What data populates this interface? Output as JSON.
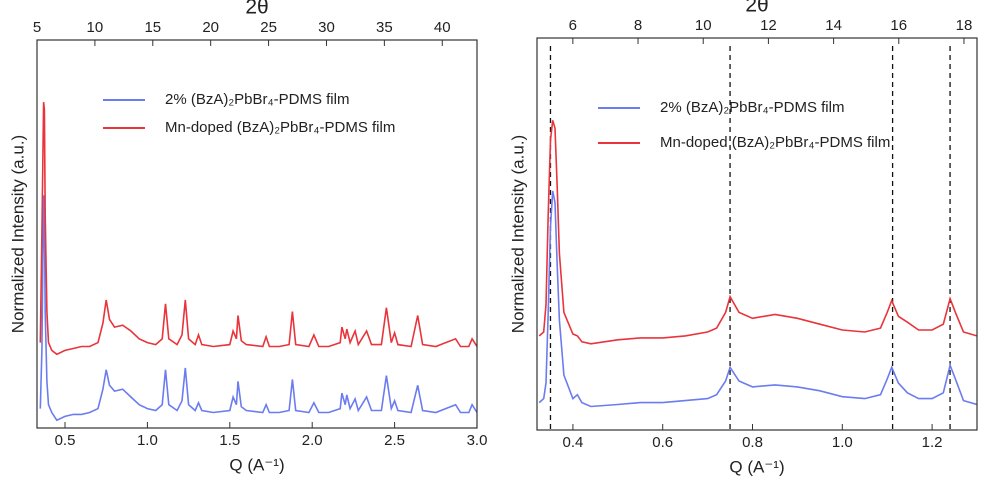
{
  "chart_data": [
    {
      "type": "line",
      "x_label": "Q (A⁻¹)",
      "x2_label": "2θ",
      "y_label": "Normalized Intensity (a.u.)",
      "xlim": [
        0.33,
        3.0
      ],
      "xticks": [
        0.5,
        {
          "value": 1,
          "label": "1.0"
        },
        1.5,
        {
          "value": 2,
          "label": "2.0"
        },
        2.5,
        {
          "value": 3,
          "label": "3.0"
        }
      ],
      "x2lim": [
        5,
        43
      ],
      "x2ticks": [
        5,
        10,
        15,
        20,
        25,
        30,
        35,
        40
      ],
      "ylim": [
        0,
        1
      ],
      "x": [
        0.35,
        0.36,
        0.37,
        0.375,
        0.38,
        0.39,
        0.4,
        0.42,
        0.45,
        0.5,
        0.55,
        0.6,
        0.65,
        0.7,
        0.73,
        0.75,
        0.77,
        0.8,
        0.85,
        0.9,
        0.95,
        1.0,
        1.05,
        1.09,
        1.11,
        1.13,
        1.18,
        1.21,
        1.23,
        1.25,
        1.29,
        1.31,
        1.33,
        1.4,
        1.5,
        1.52,
        1.54,
        1.55,
        1.57,
        1.6,
        1.7,
        1.72,
        1.74,
        1.8,
        1.86,
        1.88,
        1.9,
        1.98,
        2.01,
        2.04,
        2.1,
        2.17,
        2.18,
        2.2,
        2.21,
        2.23,
        2.26,
        2.28,
        2.33,
        2.36,
        2.42,
        2.45,
        2.48,
        2.5,
        2.52,
        2.6,
        2.64,
        2.67,
        2.75,
        2.87,
        2.9,
        2.95,
        2.97,
        3.0
      ],
      "series": [
        {
          "name": "2% (BzA)₂PbBr₄-PDMS film",
          "color": "#6b7cf0",
          "values": [
            0.05,
            0.2,
            0.6,
            0.55,
            0.3,
            0.12,
            0.06,
            0.04,
            0.02,
            0.03,
            0.035,
            0.035,
            0.04,
            0.05,
            0.1,
            0.15,
            0.11,
            0.095,
            0.1,
            0.08,
            0.06,
            0.05,
            0.045,
            0.06,
            0.15,
            0.06,
            0.045,
            0.07,
            0.155,
            0.06,
            0.045,
            0.065,
            0.045,
            0.04,
            0.045,
            0.08,
            0.06,
            0.12,
            0.055,
            0.045,
            0.04,
            0.06,
            0.04,
            0.04,
            0.045,
            0.125,
            0.045,
            0.04,
            0.065,
            0.04,
            0.04,
            0.05,
            0.09,
            0.06,
            0.085,
            0.05,
            0.075,
            0.045,
            0.08,
            0.045,
            0.045,
            0.135,
            0.05,
            0.07,
            0.045,
            0.04,
            0.11,
            0.045,
            0.04,
            0.06,
            0.04,
            0.04,
            0.06,
            0.04
          ]
        },
        {
          "name": "Mn-doped (BzA)₂PbBr₄-PDMS film",
          "color": "#e8343a",
          "values": [
            0.22,
            0.5,
            0.84,
            0.82,
            0.55,
            0.3,
            0.22,
            0.2,
            0.19,
            0.2,
            0.205,
            0.21,
            0.21,
            0.22,
            0.27,
            0.33,
            0.28,
            0.26,
            0.265,
            0.25,
            0.23,
            0.22,
            0.215,
            0.23,
            0.32,
            0.23,
            0.215,
            0.24,
            0.33,
            0.23,
            0.215,
            0.24,
            0.215,
            0.21,
            0.215,
            0.25,
            0.23,
            0.29,
            0.225,
            0.215,
            0.21,
            0.235,
            0.21,
            0.21,
            0.215,
            0.3,
            0.215,
            0.21,
            0.24,
            0.21,
            0.21,
            0.22,
            0.26,
            0.23,
            0.255,
            0.22,
            0.25,
            0.215,
            0.25,
            0.215,
            0.215,
            0.31,
            0.22,
            0.245,
            0.215,
            0.21,
            0.29,
            0.215,
            0.21,
            0.23,
            0.21,
            0.21,
            0.23,
            0.21
          ]
        }
      ]
    },
    {
      "type": "line",
      "x_label": "Q (A⁻¹)",
      "x2_label": "2θ",
      "y_label": "Normalized Intensity (a.u.)",
      "xlim": [
        0.32,
        1.3
      ],
      "xticks": [
        0.4,
        0.6,
        0.8,
        {
          "value": 1,
          "label": "1.0"
        },
        1.2
      ],
      "x2lim": [
        4.9,
        18.4
      ],
      "x2ticks": [
        6,
        8,
        10,
        12,
        14,
        16,
        18
      ],
      "ylim": [
        0,
        1
      ],
      "vlines": [
        0.35,
        0.75,
        1.112,
        1.24
      ],
      "x": [
        0.325,
        0.335,
        0.34,
        0.345,
        0.35,
        0.355,
        0.36,
        0.365,
        0.37,
        0.38,
        0.4,
        0.41,
        0.42,
        0.44,
        0.5,
        0.55,
        0.6,
        0.65,
        0.7,
        0.72,
        0.74,
        0.75,
        0.77,
        0.8,
        0.85,
        0.9,
        0.95,
        1.0,
        1.05,
        1.085,
        1.1,
        1.11,
        1.125,
        1.145,
        1.17,
        1.2,
        1.225,
        1.24,
        1.252,
        1.27,
        1.3
      ],
      "series": [
        {
          "name": "2% (BzA)₂PbBr₄-PDMS film",
          "color": "#6b7cf0",
          "values": [
            0.07,
            0.08,
            0.12,
            0.3,
            0.52,
            0.61,
            0.58,
            0.42,
            0.28,
            0.14,
            0.08,
            0.09,
            0.07,
            0.06,
            0.065,
            0.07,
            0.07,
            0.075,
            0.08,
            0.09,
            0.125,
            0.16,
            0.125,
            0.11,
            0.115,
            0.11,
            0.1,
            0.085,
            0.08,
            0.09,
            0.13,
            0.16,
            0.12,
            0.095,
            0.08,
            0.08,
            0.095,
            0.165,
            0.13,
            0.075,
            0.065
          ]
        },
        {
          "name": "Mn-doped (BzA)₂PbBr₄-PDMS film",
          "color": "#e8343a",
          "values": [
            0.24,
            0.25,
            0.32,
            0.55,
            0.74,
            0.79,
            0.77,
            0.62,
            0.45,
            0.3,
            0.245,
            0.24,
            0.225,
            0.22,
            0.23,
            0.235,
            0.235,
            0.24,
            0.25,
            0.26,
            0.3,
            0.34,
            0.3,
            0.285,
            0.295,
            0.285,
            0.27,
            0.255,
            0.25,
            0.26,
            0.3,
            0.33,
            0.29,
            0.275,
            0.255,
            0.255,
            0.27,
            0.335,
            0.3,
            0.25,
            0.24
          ]
        }
      ]
    }
  ]
}
